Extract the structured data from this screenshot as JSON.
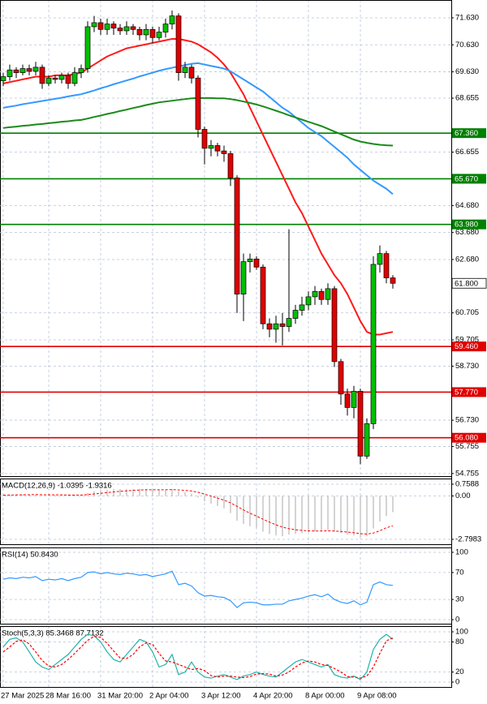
{
  "chart_data": [
    {
      "type": "candlestick",
      "categories": [
        "27 Mar 2025",
        null,
        null,
        null,
        null,
        null,
        null,
        "28 Mar 16:00",
        null,
        null,
        null,
        null,
        null,
        null,
        null,
        "31 Mar 20:00",
        null,
        null,
        null,
        null,
        null,
        null,
        null,
        "2 Apr 04:00",
        null,
        null,
        null,
        null,
        null,
        null,
        null,
        "3 Apr 12:00",
        null,
        null,
        null,
        null,
        null,
        null,
        null,
        "4 Apr 20:00",
        null,
        null,
        null,
        null,
        null,
        null,
        null,
        "8 Apr 00:00",
        null,
        null,
        null,
        null,
        null,
        null,
        null,
        "9 Apr 08:00",
        null,
        null,
        null,
        null,
        null
      ],
      "open": [
        69.3,
        69.45,
        69.7,
        69.6,
        69.75,
        69.65,
        69.8,
        69.2,
        69.4,
        69.35,
        69.5,
        69.2,
        69.6,
        69.75,
        71.3,
        71.45,
        71.2,
        71.4,
        71.25,
        71.15,
        71.3,
        71.2,
        71.0,
        71.2,
        70.9,
        71.1,
        71.4,
        71.7,
        69.6,
        69.8,
        69.4,
        67.5,
        66.8,
        66.9,
        66.7,
        66.6,
        65.7,
        61.4,
        62.6,
        62.7,
        62.4,
        60.3,
        60.1,
        60.3,
        60.2,
        60.5,
        60.8,
        61.0,
        61.3,
        61.5,
        61.2,
        61.6,
        58.9,
        57.7,
        57.2,
        57.8,
        55.4,
        56.6,
        62.5,
        62.9,
        62.0
      ],
      "high": [
        69.6,
        69.9,
        69.8,
        69.9,
        69.9,
        70.0,
        69.9,
        69.5,
        69.5,
        69.6,
        69.6,
        69.8,
        69.9,
        71.5,
        71.7,
        71.6,
        71.6,
        71.5,
        71.4,
        71.5,
        71.4,
        71.3,
        71.4,
        71.3,
        71.3,
        71.6,
        71.9,
        71.8,
        70.0,
        69.9,
        69.5,
        67.6,
        67.1,
        67.0,
        66.9,
        66.7,
        65.8,
        62.9,
        62.9,
        62.8,
        62.5,
        60.5,
        60.6,
        60.7,
        63.8,
        61.0,
        61.3,
        61.5,
        61.7,
        61.6,
        61.8,
        61.7,
        59.0,
        57.9,
        58.0,
        57.9,
        56.8,
        62.8,
        63.2,
        63.0,
        62.1
      ],
      "low": [
        69.1,
        69.3,
        69.4,
        69.5,
        69.5,
        69.5,
        69.0,
        69.1,
        69.2,
        69.2,
        69.0,
        69.1,
        69.4,
        69.6,
        71.1,
        71.0,
        71.0,
        71.0,
        71.0,
        71.0,
        71.0,
        70.8,
        70.8,
        70.7,
        70.8,
        70.9,
        71.2,
        69.3,
        69.4,
        69.2,
        67.2,
        66.2,
        66.5,
        66.5,
        66.3,
        65.4,
        60.7,
        60.4,
        62.2,
        62.3,
        60.1,
        59.8,
        59.6,
        59.5,
        60.0,
        60.3,
        60.6,
        60.8,
        61.0,
        61.0,
        61.0,
        58.7,
        57.3,
        56.9,
        56.8,
        55.1,
        55.3,
        56.4,
        62.2,
        61.8,
        61.6
      ],
      "close": [
        69.45,
        69.7,
        69.6,
        69.75,
        69.65,
        69.8,
        69.2,
        69.4,
        69.35,
        69.5,
        69.2,
        69.6,
        69.75,
        71.3,
        71.45,
        71.2,
        71.4,
        71.25,
        71.15,
        71.3,
        71.2,
        71.0,
        71.2,
        70.9,
        71.1,
        71.4,
        71.7,
        69.6,
        69.8,
        69.4,
        67.5,
        66.8,
        66.9,
        66.7,
        66.6,
        65.7,
        61.4,
        62.6,
        62.7,
        62.4,
        60.3,
        60.1,
        60.3,
        60.2,
        60.5,
        60.8,
        61.0,
        61.3,
        61.5,
        61.2,
        61.6,
        58.9,
        57.7,
        57.2,
        57.8,
        55.4,
        56.6,
        62.5,
        62.9,
        62.0,
        61.8
      ],
      "up_color": "#00c000",
      "down_color": "#e00000",
      "ylim": [
        54.63,
        72.29
      ],
      "yticks": [
        {
          "value": 71.63,
          "label": "71.630"
        },
        {
          "value": 70.63,
          "label": "70.630"
        },
        {
          "value": 69.63,
          "label": "69.630"
        },
        {
          "value": 68.655,
          "label": "68.655"
        },
        {
          "value": 66.655,
          "label": "66.655"
        },
        {
          "value": 64.68,
          "label": "64.680"
        },
        {
          "value": 63.68,
          "label": "63.680"
        },
        {
          "value": 62.68,
          "label": "62.680"
        },
        {
          "value": 60.705,
          "label": "60.705"
        },
        {
          "value": 59.705,
          "label": "59.705"
        },
        {
          "value": 58.73,
          "label": "58.730"
        },
        {
          "value": 56.73,
          "label": "56.730"
        },
        {
          "value": 55.755,
          "label": "55.755"
        },
        {
          "value": 54.755,
          "label": "54.755"
        }
      ],
      "grid": true,
      "lines": [
        {
          "color": "#ff1a1a",
          "values": [
            69.2,
            69.25,
            69.3,
            69.35,
            69.4,
            69.45,
            69.45,
            69.45,
            69.5,
            69.5,
            69.5,
            69.55,
            69.6,
            69.75,
            69.9,
            70.05,
            70.2,
            70.3,
            70.4,
            70.5,
            70.55,
            70.6,
            70.65,
            70.7,
            70.75,
            70.8,
            70.85,
            70.85,
            70.8,
            70.75,
            70.65,
            70.5,
            70.35,
            70.15,
            69.9,
            69.6,
            69.2,
            68.8,
            68.3,
            67.8,
            67.3,
            66.8,
            66.3,
            65.8,
            65.3,
            64.8,
            64.4,
            63.9,
            63.4,
            62.9,
            62.5,
            62.1,
            61.8,
            61.4,
            60.9,
            60.4,
            60.0,
            59.9,
            59.9,
            59.95,
            60.0
          ]
        },
        {
          "color": "#3399ff",
          "values": [
            68.3,
            68.34,
            68.38,
            68.43,
            68.47,
            68.51,
            68.55,
            68.59,
            68.63,
            68.67,
            68.72,
            68.76,
            68.8,
            68.87,
            68.94,
            69.02,
            69.09,
            69.17,
            69.24,
            69.31,
            69.38,
            69.46,
            69.53,
            69.6,
            69.67,
            69.73,
            69.78,
            69.83,
            69.88,
            69.93,
            69.95,
            69.9,
            69.85,
            69.8,
            69.75,
            69.65,
            69.5,
            69.35,
            69.2,
            69.05,
            68.9,
            68.7,
            68.5,
            68.3,
            68.15,
            67.95,
            67.75,
            67.55,
            67.4,
            67.25,
            67.05,
            66.85,
            66.65,
            66.45,
            66.2,
            66.0,
            65.8,
            65.6,
            65.45,
            65.3,
            65.1
          ]
        },
        {
          "color": "#1a8a1a",
          "values": [
            67.55,
            67.58,
            67.6,
            67.63,
            67.65,
            67.68,
            67.7,
            67.73,
            67.75,
            67.78,
            67.8,
            67.83,
            67.85,
            67.9,
            67.96,
            68.01,
            68.07,
            68.12,
            68.18,
            68.23,
            68.29,
            68.34,
            68.4,
            68.45,
            68.5,
            68.53,
            68.56,
            68.59,
            68.62,
            68.65,
            68.66,
            68.66,
            68.66,
            68.65,
            68.65,
            68.62,
            68.58,
            68.53,
            68.48,
            68.42,
            68.35,
            68.27,
            68.19,
            68.11,
            68.02,
            67.94,
            67.86,
            67.78,
            67.7,
            67.62,
            67.52,
            67.42,
            67.32,
            67.22,
            67.12,
            67.05,
            67.0,
            66.96,
            66.93,
            66.91,
            66.9
          ]
        }
      ],
      "levels": [
        {
          "value": 67.36,
          "label": "67.360",
          "color": "#008000"
        },
        {
          "value": 65.67,
          "label": "65.670",
          "color": "#008000"
        },
        {
          "value": 63.98,
          "label": "63.980",
          "color": "#008000"
        },
        {
          "value": 59.46,
          "label": "59.460",
          "color": "#e00000"
        },
        {
          "value": 57.77,
          "label": "57.770",
          "color": "#e00000"
        },
        {
          "value": 56.08,
          "label": "56.080",
          "color": "#e00000"
        }
      ],
      "last_price": {
        "value": 61.8,
        "label": "61.800"
      }
    },
    {
      "type": "macd",
      "label": "MACD(12,26,9) -1.0395 -1.9316",
      "histogram": [
        0.1,
        0.1,
        0.1,
        0.1,
        0.1,
        0.1,
        0.05,
        0.05,
        0.05,
        0.05,
        0.05,
        0.05,
        0.05,
        0.2,
        0.3,
        0.35,
        0.4,
        0.45,
        0.45,
        0.45,
        0.45,
        0.45,
        0.45,
        0.4,
        0.4,
        0.4,
        0.45,
        0.3,
        0.25,
        0.15,
        -0.1,
        -0.35,
        -0.5,
        -0.65,
        -0.8,
        -1.1,
        -1.6,
        -1.8,
        -1.95,
        -2.05,
        -2.3,
        -2.45,
        -2.55,
        -2.6,
        -2.5,
        -2.45,
        -2.4,
        -2.35,
        -2.3,
        -2.25,
        -2.2,
        -2.3,
        -2.4,
        -2.5,
        -2.55,
        -2.65,
        -2.6,
        -2.1,
        -1.65,
        -1.3,
        -1.0395
      ],
      "histogram_color": "#b8b8b8",
      "signal": [
        0.05,
        0.06,
        0.07,
        0.08,
        0.08,
        0.09,
        0.08,
        0.08,
        0.07,
        0.07,
        0.06,
        0.06,
        0.06,
        0.09,
        0.13,
        0.17,
        0.22,
        0.26,
        0.3,
        0.33,
        0.36,
        0.38,
        0.4,
        0.4,
        0.4,
        0.4,
        0.41,
        0.39,
        0.36,
        0.32,
        0.24,
        0.12,
        -0.01,
        -0.14,
        -0.27,
        -0.44,
        -0.67,
        -0.9,
        -1.11,
        -1.3,
        -1.5,
        -1.69,
        -1.86,
        -2.01,
        -2.11,
        -2.18,
        -2.22,
        -2.25,
        -2.26,
        -2.26,
        -2.25,
        -2.26,
        -2.29,
        -2.33,
        -2.37,
        -2.43,
        -2.46,
        -2.39,
        -2.24,
        -2.05,
        -1.9316
      ],
      "signal_color": "#ff0000",
      "ylim": [
        -3.165,
        1.125
      ],
      "yticks": [
        0.7588,
        {
          "value": 0,
          "label": "0.00"
        },
        -2.7983
      ],
      "grid": true
    },
    {
      "type": "rsi",
      "label": "RSI(14) 50.8430",
      "values": [
        60,
        62,
        61,
        63,
        62,
        64,
        58,
        60,
        59,
        61,
        58,
        61,
        63,
        70,
        71,
        68,
        70,
        68,
        67,
        69,
        68,
        66,
        67,
        64,
        66,
        68,
        72,
        52,
        54,
        50,
        40,
        35,
        36,
        34,
        33,
        28,
        18,
        25,
        26,
        25,
        22,
        22,
        23,
        23,
        28,
        30,
        32,
        35,
        37,
        34,
        38,
        30,
        26,
        24,
        28,
        22,
        26,
        52,
        56,
        52,
        50.843
      ],
      "color": "#3399ff",
      "ylim": [
        -7.2,
        107.2
      ],
      "yticks": [
        100,
        70,
        30,
        0
      ],
      "grid": true
    },
    {
      "type": "stoch",
      "label": "Stoch(5,3,3) 85.3468 87.7132",
      "series": [
        {
          "color": "#20b2aa",
          "values": [
            70,
            85,
            88,
            80,
            60,
            40,
            30,
            25,
            35,
            45,
            55,
            70,
            85,
            95,
            92,
            80,
            60,
            45,
            40,
            55,
            70,
            85,
            80,
            60,
            30,
            35,
            55,
            15,
            20,
            40,
            20,
            10,
            8,
            12,
            15,
            10,
            5,
            12,
            15,
            20,
            15,
            12,
            10,
            20,
            30,
            40,
            45,
            40,
            35,
            30,
            35,
            15,
            10,
            8,
            12,
            5,
            20,
            65,
            85,
            95,
            85.3468
          ]
        },
        {
          "color": "#ff0000",
          "dash": true,
          "values": [
            60,
            70,
            81,
            84,
            76,
            60,
            43,
            32,
            30,
            35,
            45,
            57,
            70,
            83,
            91,
            89,
            77,
            62,
            48,
            47,
            55,
            70,
            78,
            75,
            57,
            42,
            40,
            35,
            30,
            25,
            27,
            23,
            13,
            10,
            12,
            12,
            10,
            9,
            11,
            16,
            17,
            16,
            12,
            14,
            20,
            30,
            38,
            42,
            40,
            35,
            33,
            27,
            20,
            11,
            10,
            8,
            12,
            30,
            57,
            82,
            87.7132
          ]
        }
      ],
      "ylim": [
        -11.3,
        111.3
      ],
      "yticks": [
        100,
        80,
        20,
        0
      ],
      "grid": true
    }
  ]
}
